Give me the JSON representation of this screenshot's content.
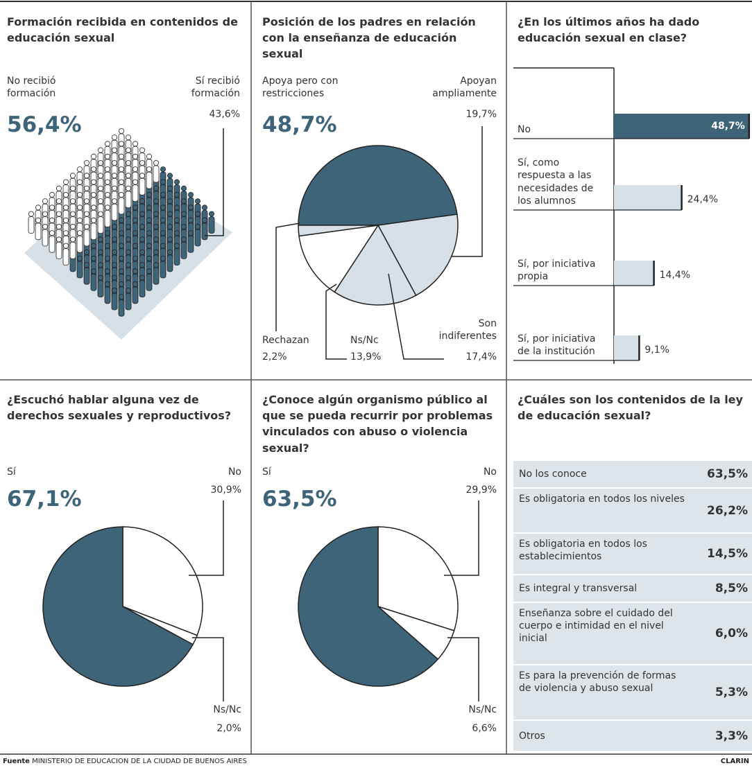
{
  "chart_data": [
    {
      "type": "pictogram",
      "title": "Formación recibida en contenidos de educación sexual",
      "categories": [
        "No recibió formación",
        "Sí recibió formación"
      ],
      "values": [
        56.4,
        43.6
      ],
      "value_labels": [
        "56,4%",
        "43,6%"
      ],
      "colors": [
        "#3d6478",
        "#ffffff"
      ]
    },
    {
      "type": "pie",
      "title": "Posición de los padres en relación con la enseñanza de educación sexual",
      "categories": [
        "Apoya pero con restricciones",
        "Apoyan ampliamente",
        "Son indiferentes",
        "Ns/Nc",
        "Rechazan"
      ],
      "values": [
        48.7,
        19.7,
        17.4,
        13.9,
        2.2
      ],
      "value_labels": [
        "48,7%",
        "19,7%",
        "17,4%",
        "13,9%",
        "2,2%"
      ],
      "colors": [
        "#3d6478",
        "#d6e0e6",
        "#d6e0e6",
        "#ffffff",
        "#d6e0e6"
      ]
    },
    {
      "type": "bar",
      "orientation": "horizontal",
      "title": "¿En los últimos años ha dado educación sexual en clase?",
      "categories": [
        "No",
        "Sí, como respuesta a las necesidades de los alumnos",
        "Sí, por iniciativa propia",
        "Sí, por iniciativa de la institución"
      ],
      "values": [
        48.7,
        24.4,
        14.4,
        9.1
      ],
      "value_labels": [
        "48,7%",
        "24,4%",
        "14,4%",
        "9,1%"
      ],
      "xlim": [
        0,
        50
      ],
      "colors": [
        "#3d6478",
        "#d6e0e6",
        "#d6e0e6",
        "#d6e0e6"
      ]
    },
    {
      "type": "pie",
      "title": "¿Escuchó hablar alguna vez de derechos sexuales y reproductivos?",
      "categories": [
        "Sí",
        "No",
        "Ns/Nc"
      ],
      "values": [
        67.1,
        30.9,
        2.0
      ],
      "value_labels": [
        "67,1%",
        "30,9%",
        "2,0%"
      ],
      "colors": [
        "#3d6478",
        "#ffffff",
        "#ffffff"
      ]
    },
    {
      "type": "pie",
      "title": "¿Conoce algún organismo público al que se pueda recurrir por problemas vinculados con abuso o violencia sexual?",
      "categories": [
        "Sí",
        "No",
        "Ns/Nc"
      ],
      "values": [
        63.5,
        29.9,
        6.6
      ],
      "value_labels": [
        "63,5%",
        "29,9%",
        "6,6%"
      ],
      "colors": [
        "#3d6478",
        "#ffffff",
        "#ffffff"
      ]
    },
    {
      "type": "table",
      "title": "¿Cuáles son los contenidos de la ley de educación sexual?",
      "categories": [
        "No los conoce",
        "Es obligatoria en todos los niveles",
        "Es obligatoria en todos los establecimientos",
        "Es integral y transversal",
        "Enseñanza sobre el cuidado del cuerpo e intimidad en el nivel inicial",
        "Es para la prevención de formas de violencia y abuso sexual",
        "Otros"
      ],
      "values": [
        63.5,
        26.2,
        14.5,
        8.5,
        6.0,
        5.3,
        3.3
      ],
      "value_labels": [
        "63,5%",
        "26,2%",
        "14,5%",
        "8,5%",
        "6,0%",
        "5,3%",
        "3,3%"
      ]
    }
  ],
  "footer": {
    "source_label": "Fuente",
    "source": "MINISTERIO DE EDUCACION DE LA CIUDAD DE BUENOS AIRES",
    "brand": "CLARIN"
  }
}
